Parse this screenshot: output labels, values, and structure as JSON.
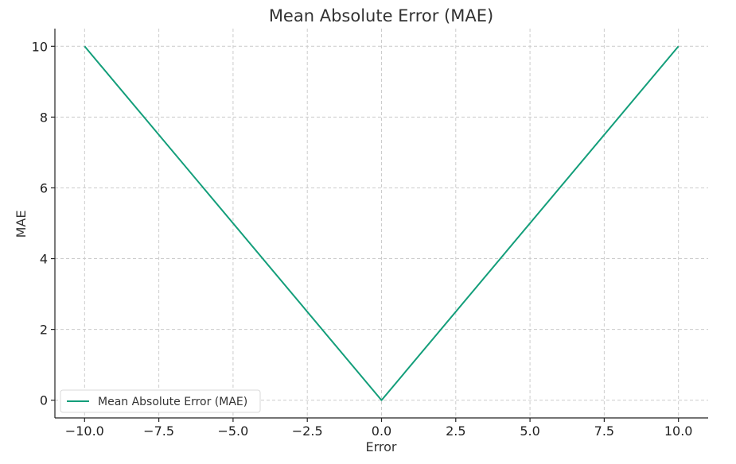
{
  "chart_data": {
    "type": "line",
    "title": "Mean Absolute Error (MAE)",
    "xlabel": "Error",
    "ylabel": "MAE",
    "xlim": [
      -11,
      11
    ],
    "ylim": [
      -0.5,
      10.5
    ],
    "grid": true,
    "legend_position": "lower-left",
    "x_ticks": [
      -10.0,
      -7.5,
      -5.0,
      -2.5,
      0.0,
      2.5,
      5.0,
      7.5,
      10.0
    ],
    "x_tick_labels": [
      "−10.0",
      "−7.5",
      "−5.0",
      "−2.5",
      "0.0",
      "2.5",
      "5.0",
      "7.5",
      "10.0"
    ],
    "y_ticks": [
      0,
      2,
      4,
      6,
      8,
      10
    ],
    "y_tick_labels": [
      "0",
      "2",
      "4",
      "6",
      "8",
      "10"
    ],
    "series": [
      {
        "name": "Mean Absolute Error (MAE)",
        "color": "#139e7a",
        "x": [
          -10,
          0,
          10
        ],
        "y": [
          10,
          0,
          10
        ]
      }
    ]
  }
}
